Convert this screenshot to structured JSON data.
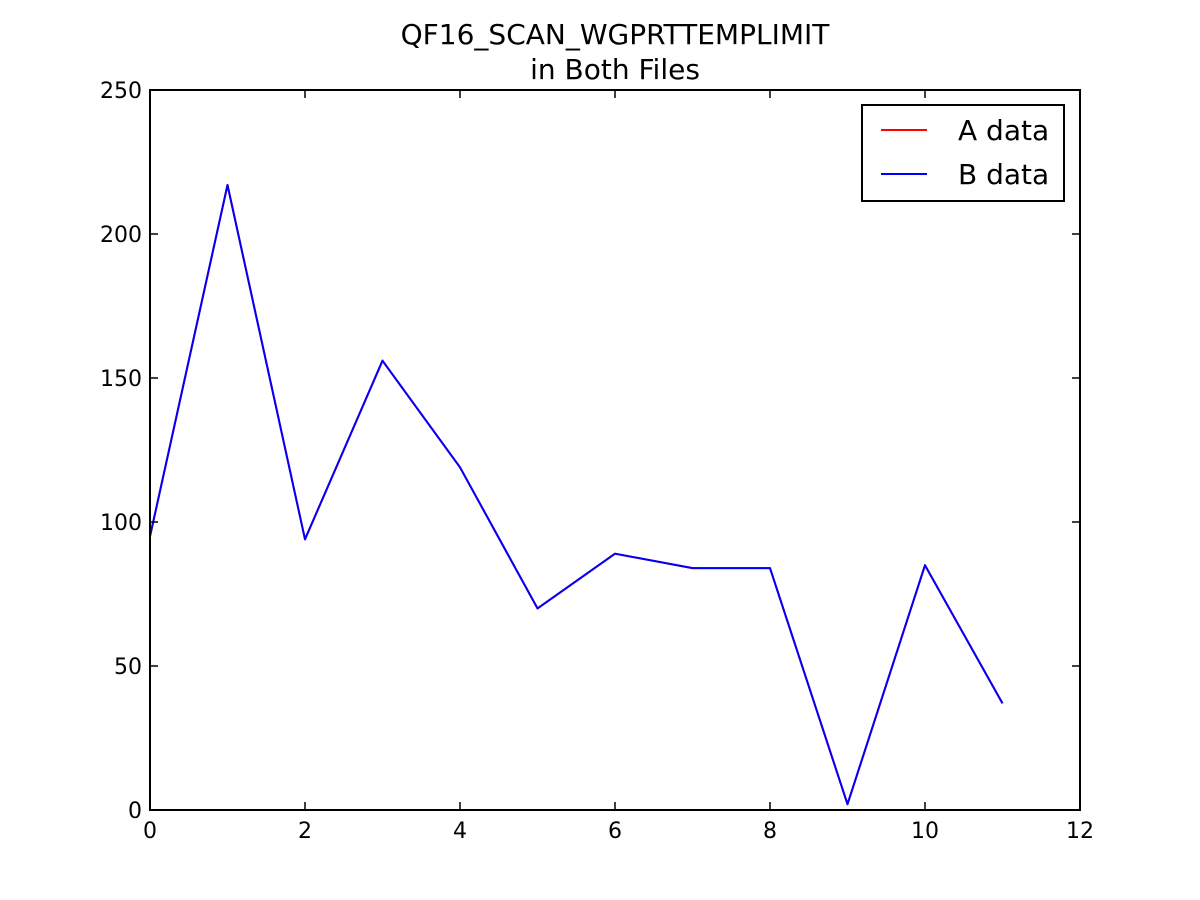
{
  "chart_data": {
    "type": "line",
    "title": [
      "QF16_SCAN_WGPRTTEMPLIMIT",
      "in Both Files"
    ],
    "xlabel": "",
    "ylabel": "",
    "xlim": [
      0,
      12
    ],
    "ylim": [
      0,
      250
    ],
    "xticks": [
      "0",
      "2",
      "4",
      "6",
      "8",
      "10",
      "12"
    ],
    "yticks": [
      "0",
      "50",
      "100",
      "150",
      "200",
      "250"
    ],
    "grid": false,
    "legend_position": "top-right",
    "x": [
      0,
      1,
      2,
      3,
      4,
      5,
      6,
      7,
      8,
      9,
      10,
      11
    ],
    "series": [
      {
        "name": "A data",
        "color": "#ff0000",
        "values": [
          95,
          217,
          94,
          156,
          119,
          70,
          89,
          84,
          84,
          2,
          85,
          37
        ]
      },
      {
        "name": "B data",
        "color": "#0000ff",
        "values": [
          95,
          217,
          94,
          156,
          119,
          70,
          89,
          84,
          84,
          2,
          85,
          37
        ]
      }
    ]
  }
}
